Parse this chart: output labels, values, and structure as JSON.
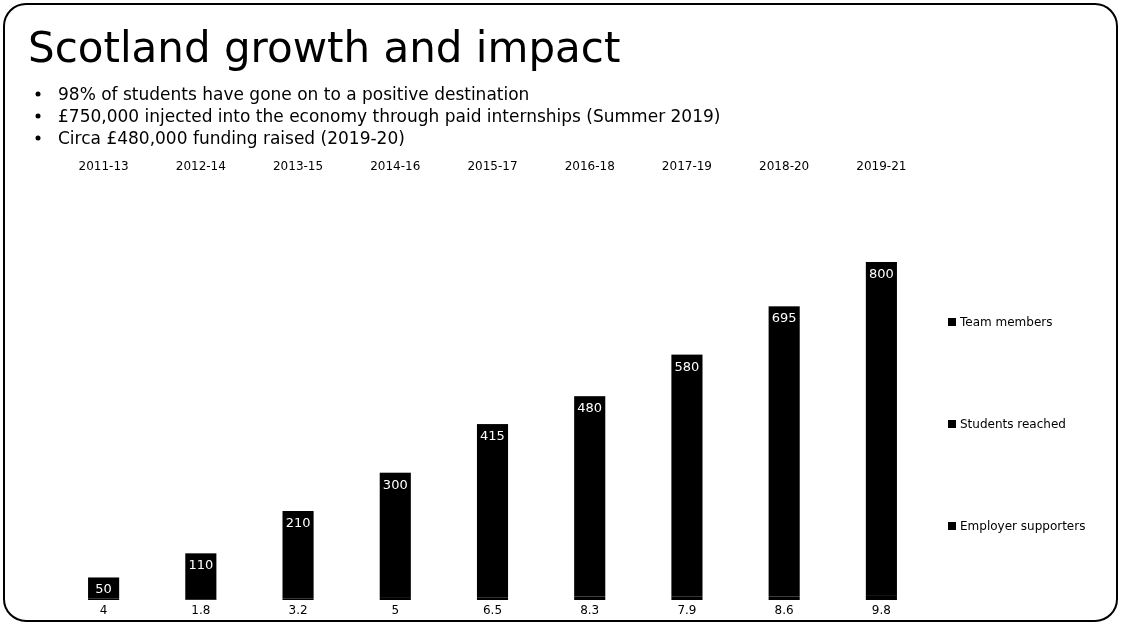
{
  "chart_data": {
    "type": "bar",
    "title": "Scotland growth and impact",
    "annotations": [
      "98% of students have gone on to a positive destination",
      "£750,000 injected into the economy through paid internships (Summer 2019)",
      "Circa £480,000 funding raised (2019-20)"
    ],
    "categories": [
      "2011-13",
      "2012-14",
      "2013-15",
      "2014-16",
      "2015-17",
      "2016-18",
      "2017-19",
      "2018-20",
      "2019-21"
    ],
    "series": [
      {
        "name": "Team members",
        "color": "#000000",
        "values": [
          4,
          1.8,
          3.2,
          5,
          6.5,
          8.3,
          7.9,
          8.6,
          9.8
        ]
      },
      {
        "name": "Students reached",
        "color": "#000000",
        "values": [
          50,
          110,
          210,
          300,
          415,
          480,
          580,
          695,
          800
        ]
      },
      {
        "name": "Employer supporters",
        "color": "#000000",
        "values": [
          null,
          null,
          null,
          null,
          null,
          null,
          null,
          null,
          null
        ]
      }
    ],
    "stacked": true,
    "data_labels": true,
    "legend": "right",
    "grid": false
  }
}
